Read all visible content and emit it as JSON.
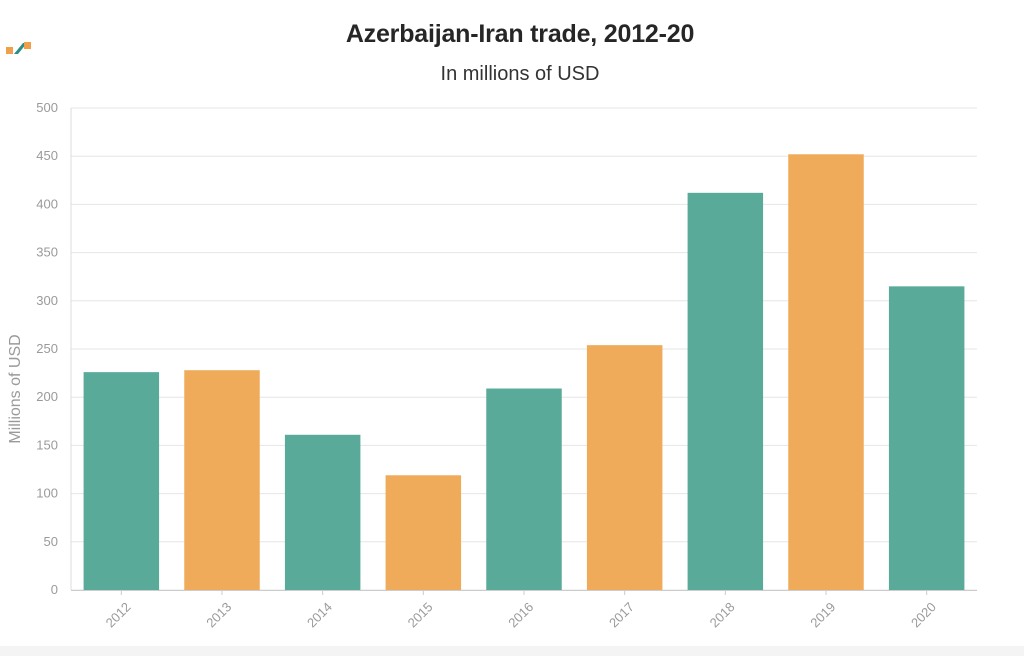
{
  "chart": {
    "title": "Azerbaijan-Iran trade, 2012-20",
    "subtitle": "In millions of USD"
  },
  "colors": {
    "teal": "#5aaa9a",
    "orange": "#f0ab5a",
    "grid": "#e6e6e6",
    "axis_text": "#9a9a9a",
    "logo_orange": "#f0a04b",
    "logo_teal": "#2c8f86"
  },
  "logo": {
    "icon": "brand-logo-icon"
  },
  "chart_data": {
    "type": "bar",
    "title": "Azerbaijan-Iran trade, 2012-20",
    "subtitle": "In millions of USD",
    "xlabel": "",
    "ylabel": "Millions of USD",
    "categories": [
      "2012",
      "2013",
      "2014",
      "2015",
      "2016",
      "2017",
      "2018",
      "2019",
      "2020"
    ],
    "values": [
      226,
      228,
      161,
      119,
      209,
      254,
      412,
      452,
      315
    ],
    "bar_colors": [
      "#5aaa9a",
      "#f0ab5a",
      "#5aaa9a",
      "#f0ab5a",
      "#5aaa9a",
      "#f0ab5a",
      "#5aaa9a",
      "#f0ab5a",
      "#5aaa9a"
    ],
    "ylim": [
      0,
      500
    ],
    "yticks": [
      "0",
      "50",
      "100",
      "150",
      "200",
      "250",
      "300",
      "350",
      "400",
      "450",
      "500"
    ],
    "grid": true,
    "legend": "none"
  }
}
